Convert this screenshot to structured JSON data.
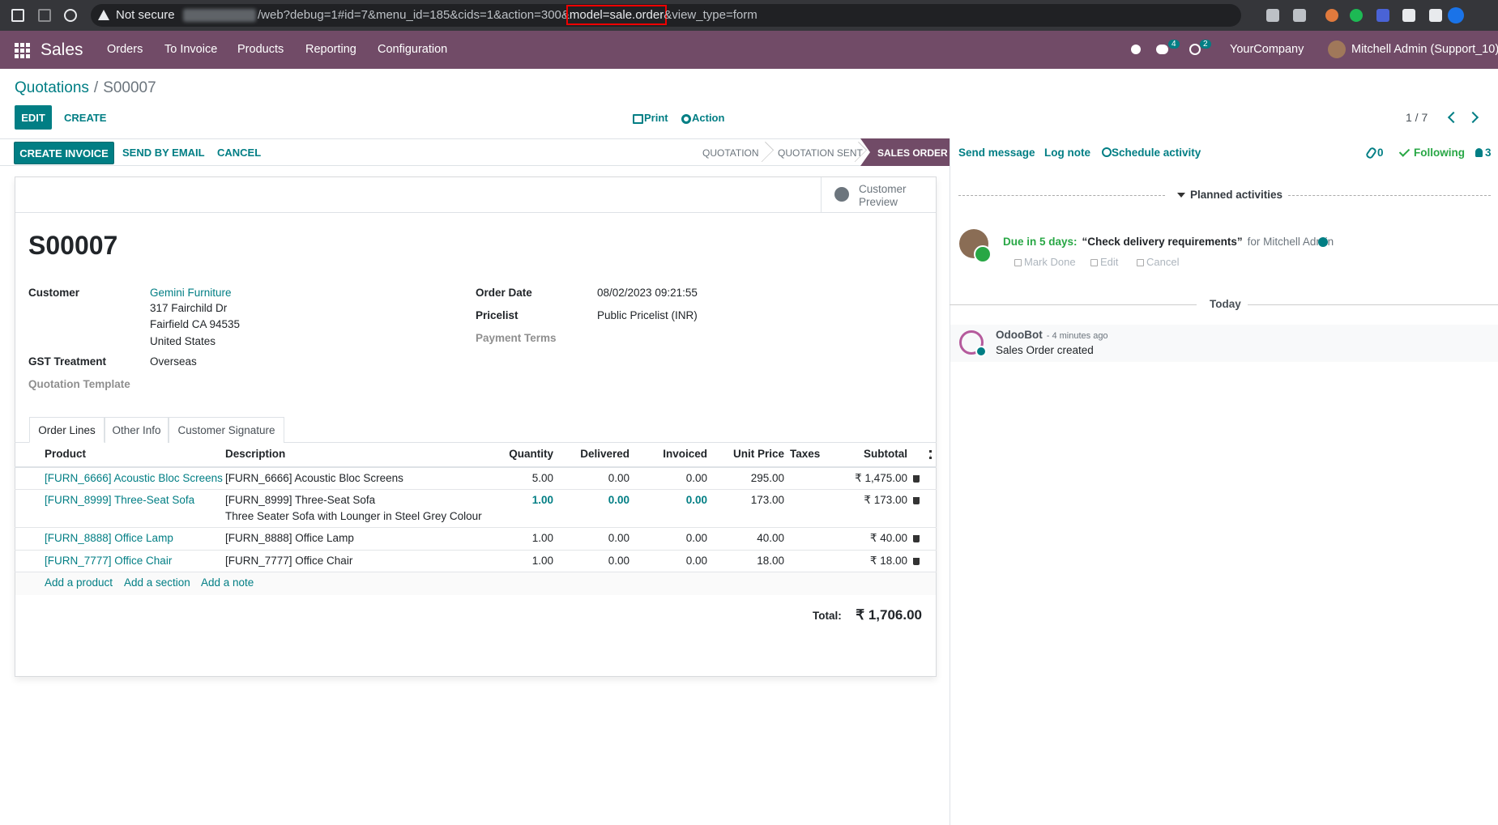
{
  "browser": {
    "security": "Not secure",
    "url": "/web?debug=1#id=7&menu_id=185&cids=1&action=300&",
    "url_highlight": "model=sale.order",
    "url_tail": "&view_type=form"
  },
  "navbar": {
    "app": "Sales",
    "menus": [
      "Orders",
      "To Invoice",
      "Products",
      "Reporting",
      "Configuration"
    ],
    "messages_badge": "4",
    "activities_badge": "2",
    "company": "YourCompany",
    "user": "Mitchell Admin (Support_10)"
  },
  "breadcrumb": {
    "parent": "Quotations",
    "separator": "/",
    "current": "S00007"
  },
  "control": {
    "edit": "EDIT",
    "create": "CREATE",
    "print": "Print",
    "action": "Action",
    "pager": "1 / 7"
  },
  "statusbar": {
    "buttons": [
      "CREATE INVOICE",
      "SEND BY EMAIL",
      "CANCEL"
    ],
    "stages": [
      "QUOTATION",
      "QUOTATION SENT",
      "SALES ORDER"
    ]
  },
  "sheet": {
    "preview": [
      "Customer",
      "Preview"
    ],
    "name": "S00007",
    "left_fields": [
      {
        "label": "Customer",
        "value": [
          "Gemini Furniture",
          "317 Fairchild Dr",
          "Fairfield CA 94535",
          "United States"
        ]
      },
      {
        "label": "GST Treatment",
        "value": [
          "Overseas"
        ]
      },
      {
        "label": "Quotation Template",
        "value": []
      }
    ],
    "right_fields": [
      {
        "label": "Order Date",
        "value": [
          "08/02/2023 09:21:55"
        ]
      },
      {
        "label": "Pricelist",
        "value": [
          "Public Pricelist (INR)"
        ]
      },
      {
        "label": "Payment Terms",
        "value": []
      }
    ],
    "tabs": [
      "Order Lines",
      "Other Info",
      "Customer Signature"
    ],
    "table": {
      "headers": [
        "Product",
        "Description",
        "Quantity",
        "Delivered",
        "Invoiced",
        "Unit Price",
        "Taxes",
        "Subtotal"
      ],
      "rows": [
        [
          "[FURN_6666] Acoustic Bloc Screens",
          [
            "[FURN_6666] Acoustic Bloc Screens"
          ],
          "5.00",
          "0.00",
          "0.00",
          "295.00",
          "",
          "₹ 1,475.00"
        ],
        [
          "[FURN_8999] Three-Seat Sofa",
          [
            "[FURN_8999] Three-Seat Sofa",
            "Three Seater Sofa with Lounger in Steel Grey Colour"
          ],
          "1.00",
          "0.00",
          "0.00",
          "173.00",
          "",
          "₹ 173.00"
        ],
        [
          "[FURN_8888] Office Lamp",
          [
            "[FURN_8888] Office Lamp"
          ],
          "1.00",
          "0.00",
          "0.00",
          "40.00",
          "",
          "₹ 40.00"
        ],
        [
          "[FURN_7777] Office Chair",
          [
            "[FURN_7777] Office Chair"
          ],
          "1.00",
          "0.00",
          "0.00",
          "18.00",
          "",
          "₹ 18.00"
        ]
      ],
      "add_links": [
        "Add a product",
        "Add a section",
        "Add a note"
      ]
    },
    "total_label": "Total:",
    "total": "₹ 1,706.00"
  },
  "chatter": {
    "actions": [
      "Send message",
      "Log note",
      "Schedule activity"
    ],
    "attachments": "0",
    "following": "Following",
    "followers": "3",
    "planned": "Planned activities",
    "activity": {
      "due": "Due in 5 days:",
      "summary": "“Check delivery requirements”",
      "assignee": "for Mitchell Admin",
      "buttons": [
        "Mark Done",
        "Edit",
        "Cancel"
      ]
    },
    "today": "Today",
    "message": {
      "author": "OdooBot",
      "time": "- 4 minutes ago",
      "body": "Sales Order created"
    }
  }
}
